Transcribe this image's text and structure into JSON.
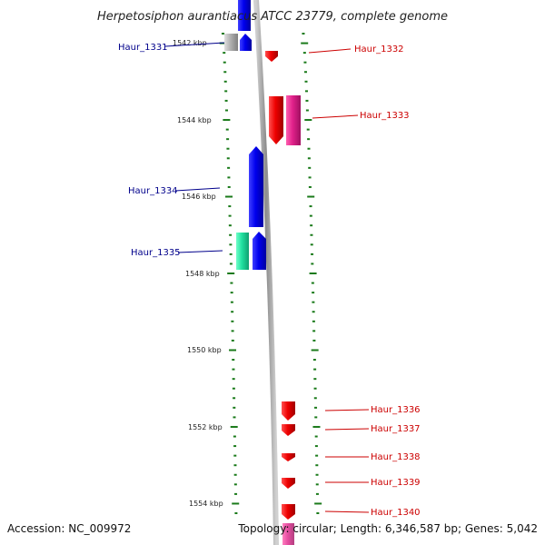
{
  "title": "Herpetosiphon aurantiacus ATCC 23779, complete genome",
  "accession": "Accession: NC_009972",
  "summary": "Topology: circular; Length: 6,346,587 bp; Genes: 5,042",
  "colors": {
    "backbone": "#8c8c8c",
    "tick": "#1a7a1a",
    "left_label": "#00008b",
    "right_label": "#cc0000",
    "blue": "#0000ee",
    "grey": "#b0b0b0",
    "red": "#ee0000",
    "pink": "#e0208a",
    "mint": "#20e0a0"
  },
  "kbp_labels": [
    "1542 kbp",
    "1544 kbp",
    "1546 kbp",
    "1548 kbp",
    "1550 kbp",
    "1552 kbp",
    "1554 kbp"
  ],
  "gene_labels_left": [
    "Haur_1331",
    "Haur_1334",
    "Haur_1335"
  ],
  "gene_labels_right": [
    "Haur_1332",
    "Haur_1333",
    "Haur_1336",
    "Haur_1337",
    "Haur_1338",
    "Haur_1339",
    "Haur_1340"
  ]
}
